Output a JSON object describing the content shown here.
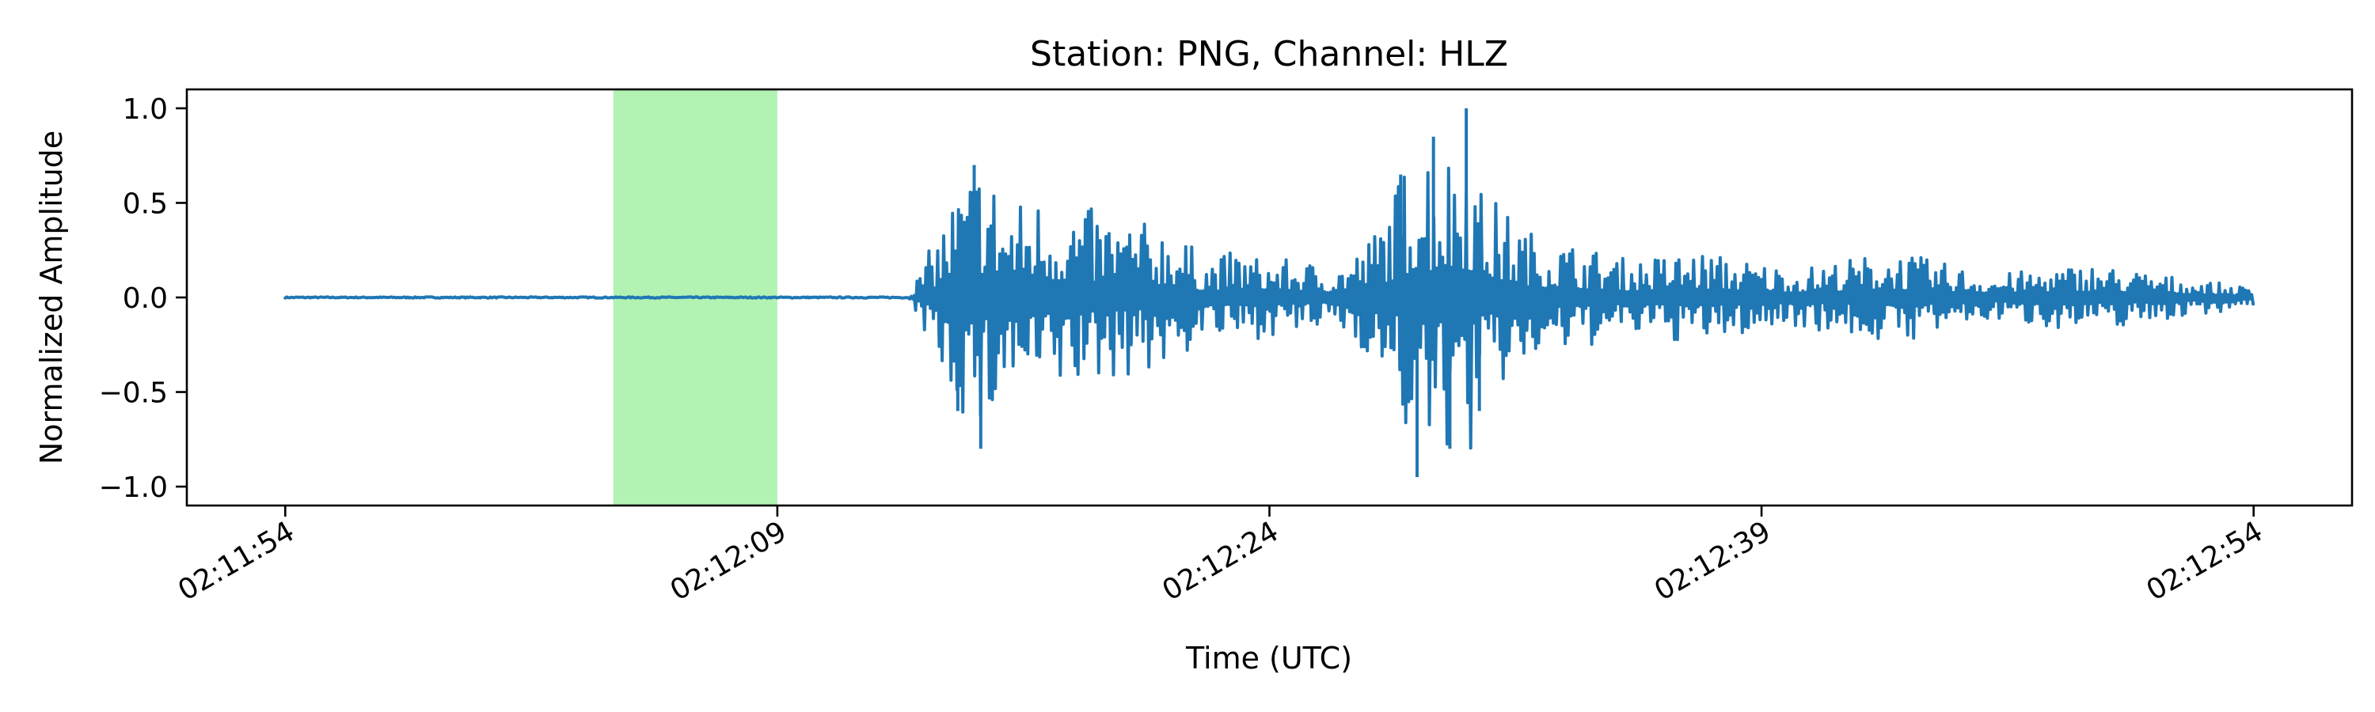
{
  "chart_data": {
    "type": "line",
    "title": "Station: PNG, Channel: HLZ",
    "xlabel": "Time (UTC)",
    "ylabel": "Normalized Amplitude",
    "x_start": "02:11:54",
    "x_end": "02:12:54",
    "xlim": [
      "02:11:51",
      "02:12:57"
    ],
    "ylim": [
      -1.1,
      1.1
    ],
    "grid": false,
    "x_ticks": [
      "02:11:54",
      "02:12:09",
      "02:12:24",
      "02:12:39",
      "02:12:54"
    ],
    "y_ticks": [
      {
        "value": 1.0,
        "label": "1.0"
      },
      {
        "value": 0.5,
        "label": "0.5"
      },
      {
        "value": 0.0,
        "label": "0.0"
      },
      {
        "value": -0.5,
        "label": "−0.5"
      },
      {
        "value": -1.0,
        "label": "−1.0"
      }
    ],
    "highlight": {
      "start": "02:12:04",
      "end": "02:12:09",
      "color": "#b2f2b2"
    },
    "series": [
      {
        "color": "#1f77b4",
        "note_values": "approximate envelope of the waveform read from the plot",
        "points": [
          [
            "02:11:54",
            0.0
          ],
          [
            "02:12:13",
            0.0
          ],
          [
            "02:12:14",
            0.4
          ],
          [
            "02:12:14.5",
            -0.6
          ],
          [
            "02:12:15",
            0.7
          ],
          [
            "02:12:15.2",
            -0.8
          ],
          [
            "02:12:16",
            0.5
          ],
          [
            "02:12:17",
            -0.55
          ],
          [
            "02:12:18",
            0.5
          ],
          [
            "02:12:19",
            -0.45
          ],
          [
            "02:12:20",
            0.4
          ],
          [
            "02:12:21",
            -0.4
          ],
          [
            "02:12:22",
            0.2
          ],
          [
            "02:12:23",
            -0.25
          ],
          [
            "02:12:24",
            0.2
          ],
          [
            "02:12:25",
            -0.2
          ],
          [
            "02:12:26",
            0.15
          ],
          [
            "02:12:27",
            -0.3
          ],
          [
            "02:12:28",
            0.65
          ],
          [
            "02:12:28.5",
            -0.95
          ],
          [
            "02:12:29",
            0.85
          ],
          [
            "02:12:29.5",
            -0.8
          ],
          [
            "02:12:30",
            1.0
          ],
          [
            "02:12:30.4",
            -0.6
          ],
          [
            "02:12:31",
            0.5
          ],
          [
            "02:12:32",
            -0.35
          ],
          [
            "02:12:33",
            0.3
          ],
          [
            "02:12:35",
            -0.2
          ],
          [
            "02:12:37",
            0.25
          ],
          [
            "02:12:40",
            -0.15
          ],
          [
            "02:12:43",
            0.25
          ],
          [
            "02:12:46",
            -0.12
          ],
          [
            "02:12:49",
            0.18
          ],
          [
            "02:12:52",
            -0.1
          ],
          [
            "02:12:54",
            -0.05
          ]
        ]
      }
    ]
  }
}
